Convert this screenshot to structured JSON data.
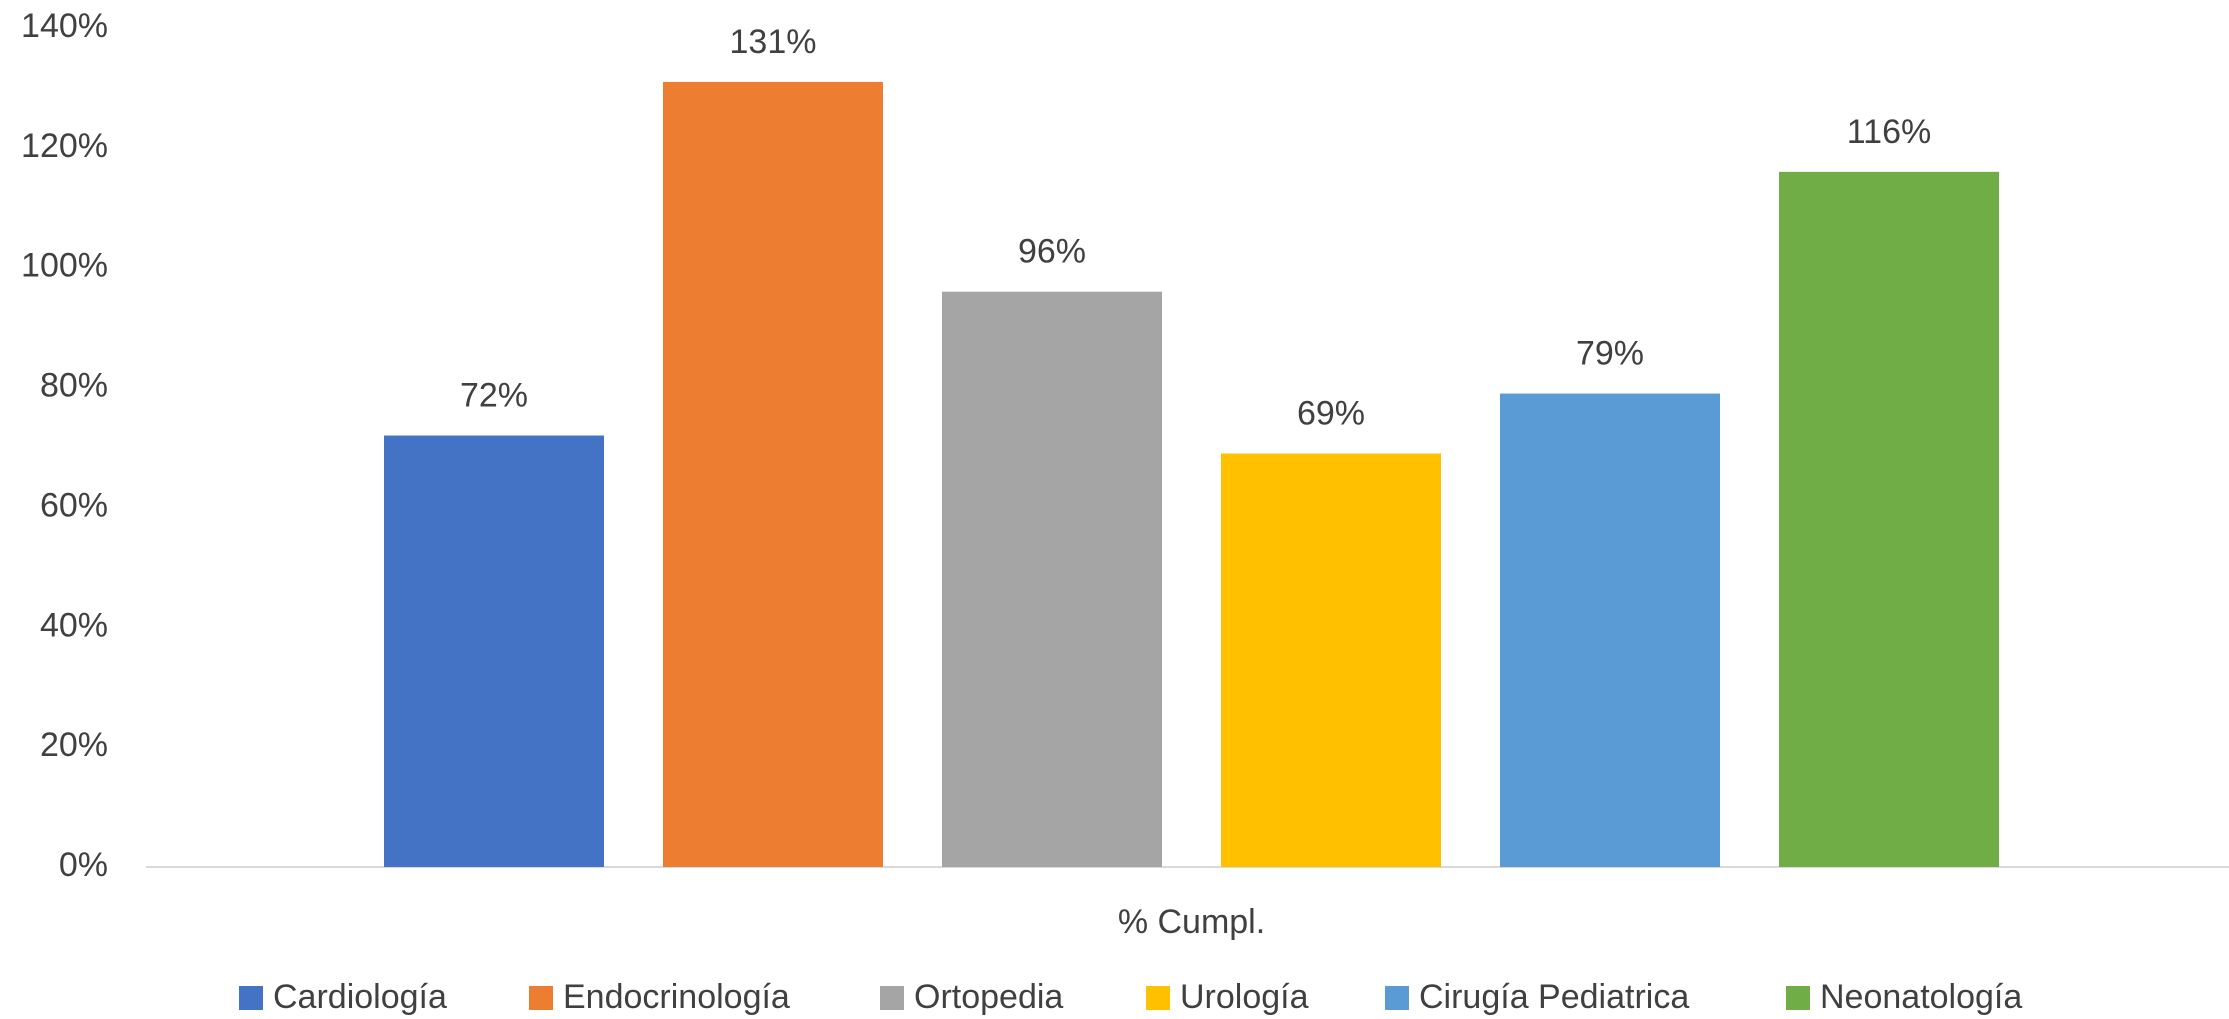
{
  "chart_data": {
    "type": "bar",
    "categories": [
      "% Cumpl."
    ],
    "series": [
      {
        "name": "Cardiología",
        "color": "#4472c4",
        "values": [
          72
        ],
        "value_labels": [
          "72%"
        ]
      },
      {
        "name": "Endocrinología",
        "color": "#ed7d31",
        "values": [
          131
        ],
        "value_labels": [
          "131%"
        ]
      },
      {
        "name": "Ortopedia",
        "color": "#a5a5a5",
        "values": [
          96
        ],
        "value_labels": [
          "96%"
        ]
      },
      {
        "name": "Urología",
        "color": "#ffc000",
        "values": [
          69
        ],
        "value_labels": [
          "69%"
        ]
      },
      {
        "name": "Cirugía Pediatrica",
        "color": "#5b9bd5",
        "values": [
          79
        ],
        "value_labels": [
          "79%"
        ]
      },
      {
        "name": "Neonatología",
        "color": "#70ad47",
        "values": [
          116
        ],
        "value_labels": [
          "116%"
        ]
      }
    ],
    "ylim": [
      0,
      140
    ],
    "yticks": [
      {
        "value": 0,
        "label": "0%"
      },
      {
        "value": 20,
        "label": "20%"
      },
      {
        "value": 40,
        "label": "40%"
      },
      {
        "value": 60,
        "label": "60%"
      },
      {
        "value": 80,
        "label": "80%"
      },
      {
        "value": 100,
        "label": "100%"
      },
      {
        "value": 120,
        "label": "120%"
      },
      {
        "value": 140,
        "label": "140%"
      }
    ],
    "grid": false,
    "legend": "bottom"
  }
}
